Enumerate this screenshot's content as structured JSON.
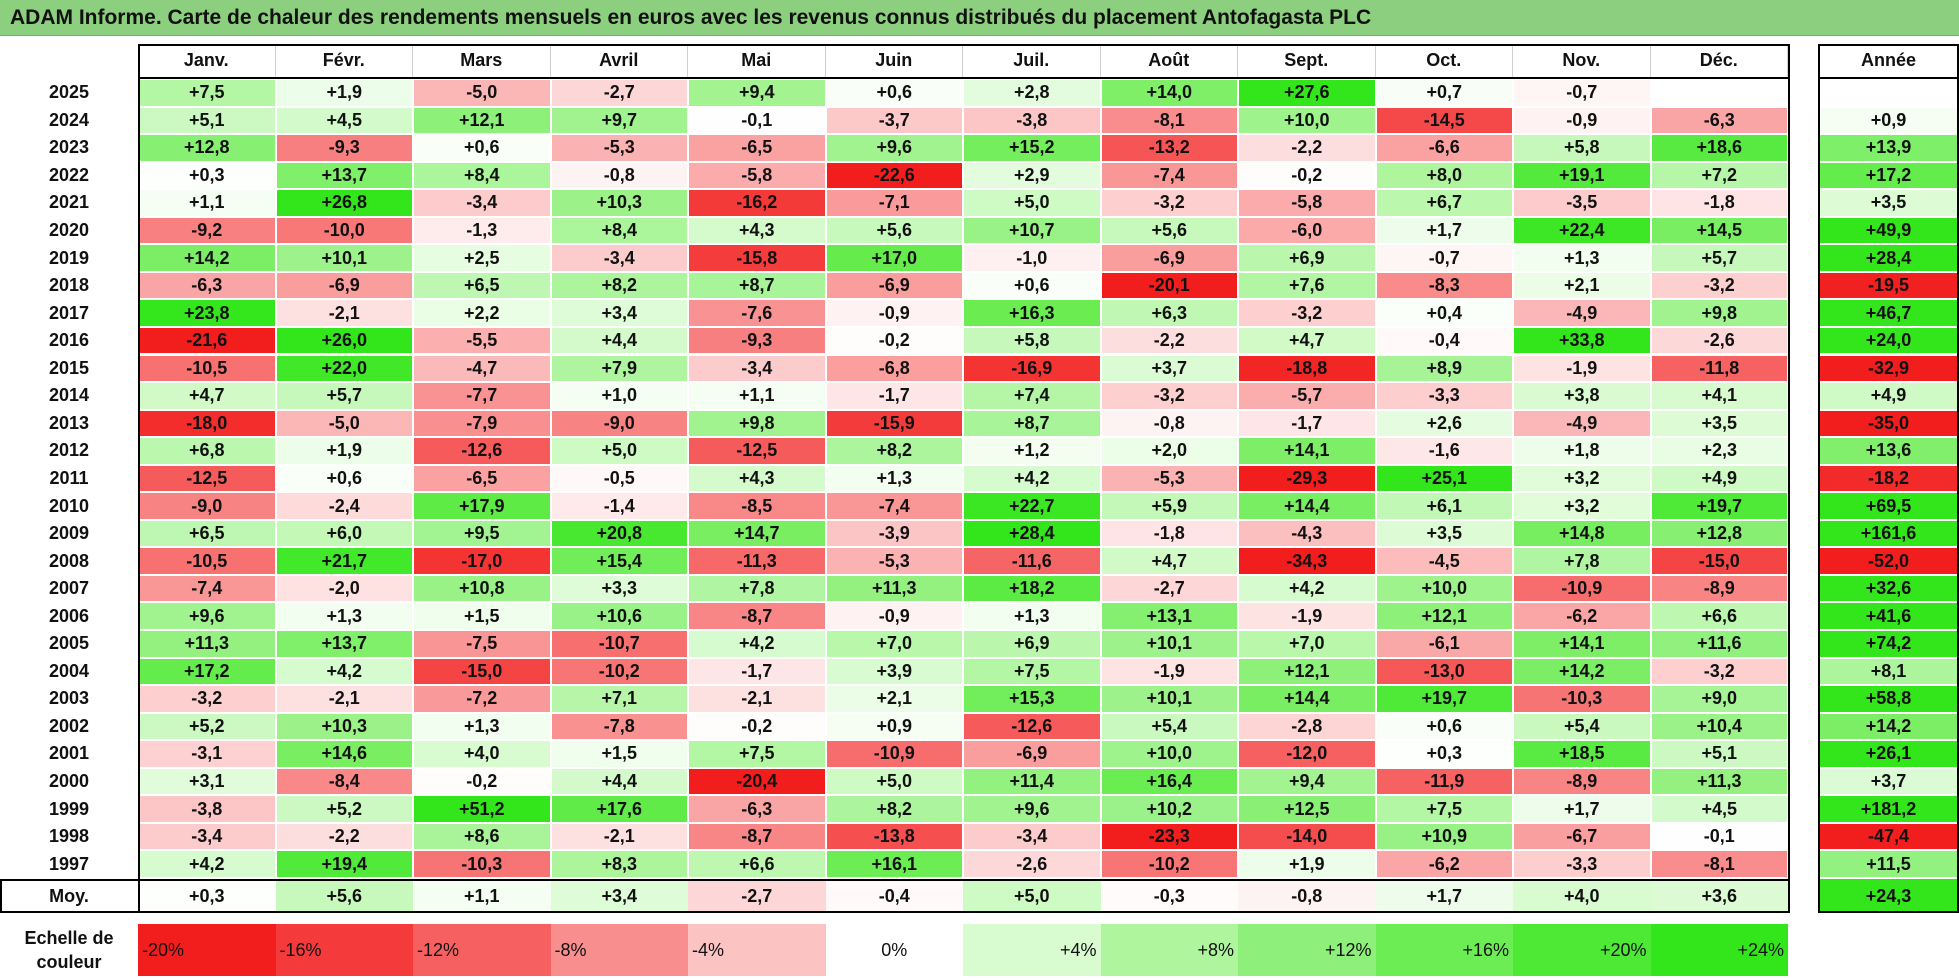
{
  "title": "ADAM Informe. Carte de chaleur des rendements mensuels en euros avec les revenus connus distribués du placement Antofagasta PLC",
  "chart_data": {
    "type": "heatmap",
    "title": "ADAM Informe. Carte de chaleur des rendements mensuels en euros avec les revenus connus distribués du placement Antofagasta PLC",
    "months": [
      "Janv.",
      "Févr.",
      "Mars",
      "Avril",
      "Mai",
      "Juin",
      "Juil.",
      "Août",
      "Sept.",
      "Oct.",
      "Nov.",
      "Déc."
    ],
    "annual_header": "Année",
    "rows": [
      {
        "year": "2025",
        "values": [
          "+7,5",
          "+1,9",
          "-5,0",
          "-2,7",
          "+9,4",
          "+0,6",
          "+2,8",
          "+14,0",
          "+27,6",
          "+0,7",
          "-0,7",
          ""
        ],
        "annual": ""
      },
      {
        "year": "2024",
        "values": [
          "+5,1",
          "+4,5",
          "+12,1",
          "+9,7",
          "-0,1",
          "-3,7",
          "-3,8",
          "-8,1",
          "+10,0",
          "-14,5",
          "-0,9",
          "-6,3"
        ],
        "annual": "+0,9"
      },
      {
        "year": "2023",
        "values": [
          "+12,8",
          "-9,3",
          "+0,6",
          "-5,3",
          "-6,5",
          "+9,6",
          "+15,2",
          "-13,2",
          "-2,2",
          "-6,6",
          "+5,8",
          "+18,6"
        ],
        "annual": "+13,9"
      },
      {
        "year": "2022",
        "values": [
          "+0,3",
          "+13,7",
          "+8,4",
          "-0,8",
          "-5,8",
          "-22,6",
          "+2,9",
          "-7,4",
          "-0,2",
          "+8,0",
          "+19,1",
          "+7,2"
        ],
        "annual": "+17,2"
      },
      {
        "year": "2021",
        "values": [
          "+1,1",
          "+26,8",
          "-3,4",
          "+10,3",
          "-16,2",
          "-7,1",
          "+5,0",
          "-3,2",
          "-5,8",
          "+6,7",
          "-3,5",
          "-1,8"
        ],
        "annual": "+3,5"
      },
      {
        "year": "2020",
        "values": [
          "-9,2",
          "-10,0",
          "-1,3",
          "+8,4",
          "+4,3",
          "+5,6",
          "+10,7",
          "+5,6",
          "-6,0",
          "+1,7",
          "+22,4",
          "+14,5"
        ],
        "annual": "+49,9"
      },
      {
        "year": "2019",
        "values": [
          "+14,2",
          "+10,1",
          "+2,5",
          "-3,4",
          "-15,8",
          "+17,0",
          "-1,0",
          "-6,9",
          "+6,9",
          "-0,7",
          "+1,3",
          "+5,7"
        ],
        "annual": "+28,4"
      },
      {
        "year": "2018",
        "values": [
          "-6,3",
          "-6,9",
          "+6,5",
          "+8,2",
          "+8,7",
          "-6,9",
          "+0,6",
          "-20,1",
          "+7,6",
          "-8,3",
          "+2,1",
          "-3,2"
        ],
        "annual": "-19,5"
      },
      {
        "year": "2017",
        "values": [
          "+23,8",
          "-2,1",
          "+2,2",
          "+3,4",
          "-7,6",
          "-0,9",
          "+16,3",
          "+6,3",
          "-3,2",
          "+0,4",
          "-4,9",
          "+9,8"
        ],
        "annual": "+46,7"
      },
      {
        "year": "2016",
        "values": [
          "-21,6",
          "+26,0",
          "-5,5",
          "+4,4",
          "-9,3",
          "-0,2",
          "+5,8",
          "-2,2",
          "+4,7",
          "-0,4",
          "+33,8",
          "-2,6"
        ],
        "annual": "+24,0"
      },
      {
        "year": "2015",
        "values": [
          "-10,5",
          "+22,0",
          "-4,7",
          "+7,9",
          "-3,4",
          "-6,8",
          "-16,9",
          "+3,7",
          "-18,8",
          "+8,9",
          "-1,9",
          "-11,8"
        ],
        "annual": "-32,9"
      },
      {
        "year": "2014",
        "values": [
          "+4,7",
          "+5,7",
          "-7,7",
          "+1,0",
          "+1,1",
          "-1,7",
          "+7,4",
          "-3,2",
          "-5,7",
          "-3,3",
          "+3,8",
          "+4,1"
        ],
        "annual": "+4,9"
      },
      {
        "year": "2013",
        "values": [
          "-18,0",
          "-5,0",
          "-7,9",
          "-9,0",
          "+9,8",
          "-15,9",
          "+8,7",
          "-0,8",
          "-1,7",
          "+2,6",
          "-4,9",
          "+3,5"
        ],
        "annual": "-35,0"
      },
      {
        "year": "2012",
        "values": [
          "+6,8",
          "+1,9",
          "-12,6",
          "+5,0",
          "-12,5",
          "+8,2",
          "+1,2",
          "+2,0",
          "+14,1",
          "-1,6",
          "+1,8",
          "+2,3"
        ],
        "annual": "+13,6"
      },
      {
        "year": "2011",
        "values": [
          "-12,5",
          "+0,6",
          "-6,5",
          "-0,5",
          "+4,3",
          "+1,3",
          "+4,2",
          "-5,3",
          "-29,3",
          "+25,1",
          "+3,2",
          "+4,9"
        ],
        "annual": "-18,2"
      },
      {
        "year": "2010",
        "values": [
          "-9,0",
          "-2,4",
          "+17,9",
          "-1,4",
          "-8,5",
          "-7,4",
          "+22,7",
          "+5,9",
          "+14,4",
          "+6,1",
          "+3,2",
          "+19,7"
        ],
        "annual": "+69,5"
      },
      {
        "year": "2009",
        "values": [
          "+6,5",
          "+6,0",
          "+9,5",
          "+20,8",
          "+14,7",
          "-3,9",
          "+28,4",
          "-1,8",
          "-4,3",
          "+3,5",
          "+14,8",
          "+12,8"
        ],
        "annual": "+161,6"
      },
      {
        "year": "2008",
        "values": [
          "-10,5",
          "+21,7",
          "-17,0",
          "+15,4",
          "-11,3",
          "-5,3",
          "-11,6",
          "+4,7",
          "-34,3",
          "-4,5",
          "+7,8",
          "-15,0"
        ],
        "annual": "-52,0"
      },
      {
        "year": "2007",
        "values": [
          "-7,4",
          "-2,0",
          "+10,8",
          "+3,3",
          "+7,8",
          "+11,3",
          "+18,2",
          "-2,7",
          "+4,2",
          "+10,0",
          "-10,9",
          "-8,9"
        ],
        "annual": "+32,6"
      },
      {
        "year": "2006",
        "values": [
          "+9,6",
          "+1,3",
          "+1,5",
          "+10,6",
          "-8,7",
          "-0,9",
          "+1,3",
          "+13,1",
          "-1,9",
          "+12,1",
          "-6,2",
          "+6,6"
        ],
        "annual": "+41,6"
      },
      {
        "year": "2005",
        "values": [
          "+11,3",
          "+13,7",
          "-7,5",
          "-10,7",
          "+4,2",
          "+7,0",
          "+6,9",
          "+10,1",
          "+7,0",
          "-6,1",
          "+14,1",
          "+11,6"
        ],
        "annual": "+74,2"
      },
      {
        "year": "2004",
        "values": [
          "+17,2",
          "+4,2",
          "-15,0",
          "-10,2",
          "-1,7",
          "+3,9",
          "+7,5",
          "-1,9",
          "+12,1",
          "-13,0",
          "+14,2",
          "-3,2"
        ],
        "annual": "+8,1"
      },
      {
        "year": "2003",
        "values": [
          "-3,2",
          "-2,1",
          "-7,2",
          "+7,1",
          "-2,1",
          "+2,1",
          "+15,3",
          "+10,1",
          "+14,4",
          "+19,7",
          "-10,3",
          "+9,0"
        ],
        "annual": "+58,8"
      },
      {
        "year": "2002",
        "values": [
          "+5,2",
          "+10,3",
          "+1,3",
          "-7,8",
          "-0,2",
          "+0,9",
          "-12,6",
          "+5,4",
          "-2,8",
          "+0,6",
          "+5,4",
          "+10,4"
        ],
        "annual": "+14,2"
      },
      {
        "year": "2001",
        "values": [
          "-3,1",
          "+14,6",
          "+4,0",
          "+1,5",
          "+7,5",
          "-10,9",
          "-6,9",
          "+10,0",
          "-12,0",
          "+0,3",
          "+18,5",
          "+5,1"
        ],
        "annual": "+26,1"
      },
      {
        "year": "2000",
        "values": [
          "+3,1",
          "-8,4",
          "-0,2",
          "+4,4",
          "-20,4",
          "+5,0",
          "+11,4",
          "+16,4",
          "+9,4",
          "-11,9",
          "-8,9",
          "+11,3"
        ],
        "annual": "+3,7"
      },
      {
        "year": "1999",
        "values": [
          "-3,8",
          "+5,2",
          "+51,2",
          "+17,6",
          "-6,3",
          "+8,2",
          "+9,6",
          "+10,2",
          "+12,5",
          "+7,5",
          "+1,7",
          "+4,5"
        ],
        "annual": "+181,2"
      },
      {
        "year": "1998",
        "values": [
          "-3,4",
          "-2,2",
          "+8,6",
          "-2,1",
          "-8,7",
          "-13,8",
          "-3,4",
          "-23,3",
          "-14,0",
          "+10,9",
          "-6,7",
          "-0,1"
        ],
        "annual": "-47,4"
      },
      {
        "year": "1997",
        "values": [
          "+4,2",
          "+19,4",
          "-10,3",
          "+8,3",
          "+6,6",
          "+16,1",
          "-2,6",
          "-10,2",
          "+1,9",
          "-6,2",
          "-3,3",
          "-8,1"
        ],
        "annual": "+11,5"
      }
    ],
    "average": {
      "label": "Moy.",
      "values": [
        "+0,3",
        "+5,6",
        "+1,1",
        "+3,4",
        "-2,7",
        "-0,4",
        "+5,0",
        "-0,3",
        "-0,8",
        "+1,7",
        "+4,0",
        "+3,6"
      ],
      "annual": "+24,3"
    },
    "legend": {
      "label_line1": "Echelle de",
      "label_line2": "couleur",
      "stops": [
        {
          "label": "-20%",
          "value": -20,
          "color": "#f21d1d"
        },
        {
          "label": "-16%",
          "value": -16,
          "color": "#f43a3a"
        },
        {
          "label": "-12%",
          "value": -12,
          "color": "#f66060"
        },
        {
          "label": "-8%",
          "value": -8,
          "color": "#f98e8e"
        },
        {
          "label": "-4%",
          "value": -4,
          "color": "#fcc3c3"
        },
        {
          "label": "0%",
          "value": 0,
          "color": "#ffffff"
        },
        {
          "label": "+4%",
          "value": 4,
          "color": "#d8fbd0"
        },
        {
          "label": "+8%",
          "value": 8,
          "color": "#aef59e"
        },
        {
          "label": "+12%",
          "value": 12,
          "color": "#8ef07a"
        },
        {
          "label": "+16%",
          "value": 16,
          "color": "#6ded54"
        },
        {
          "label": "+20%",
          "value": 20,
          "color": "#4de935"
        },
        {
          "label": "+24%",
          "value": 24,
          "color": "#33e61b"
        }
      ]
    }
  }
}
